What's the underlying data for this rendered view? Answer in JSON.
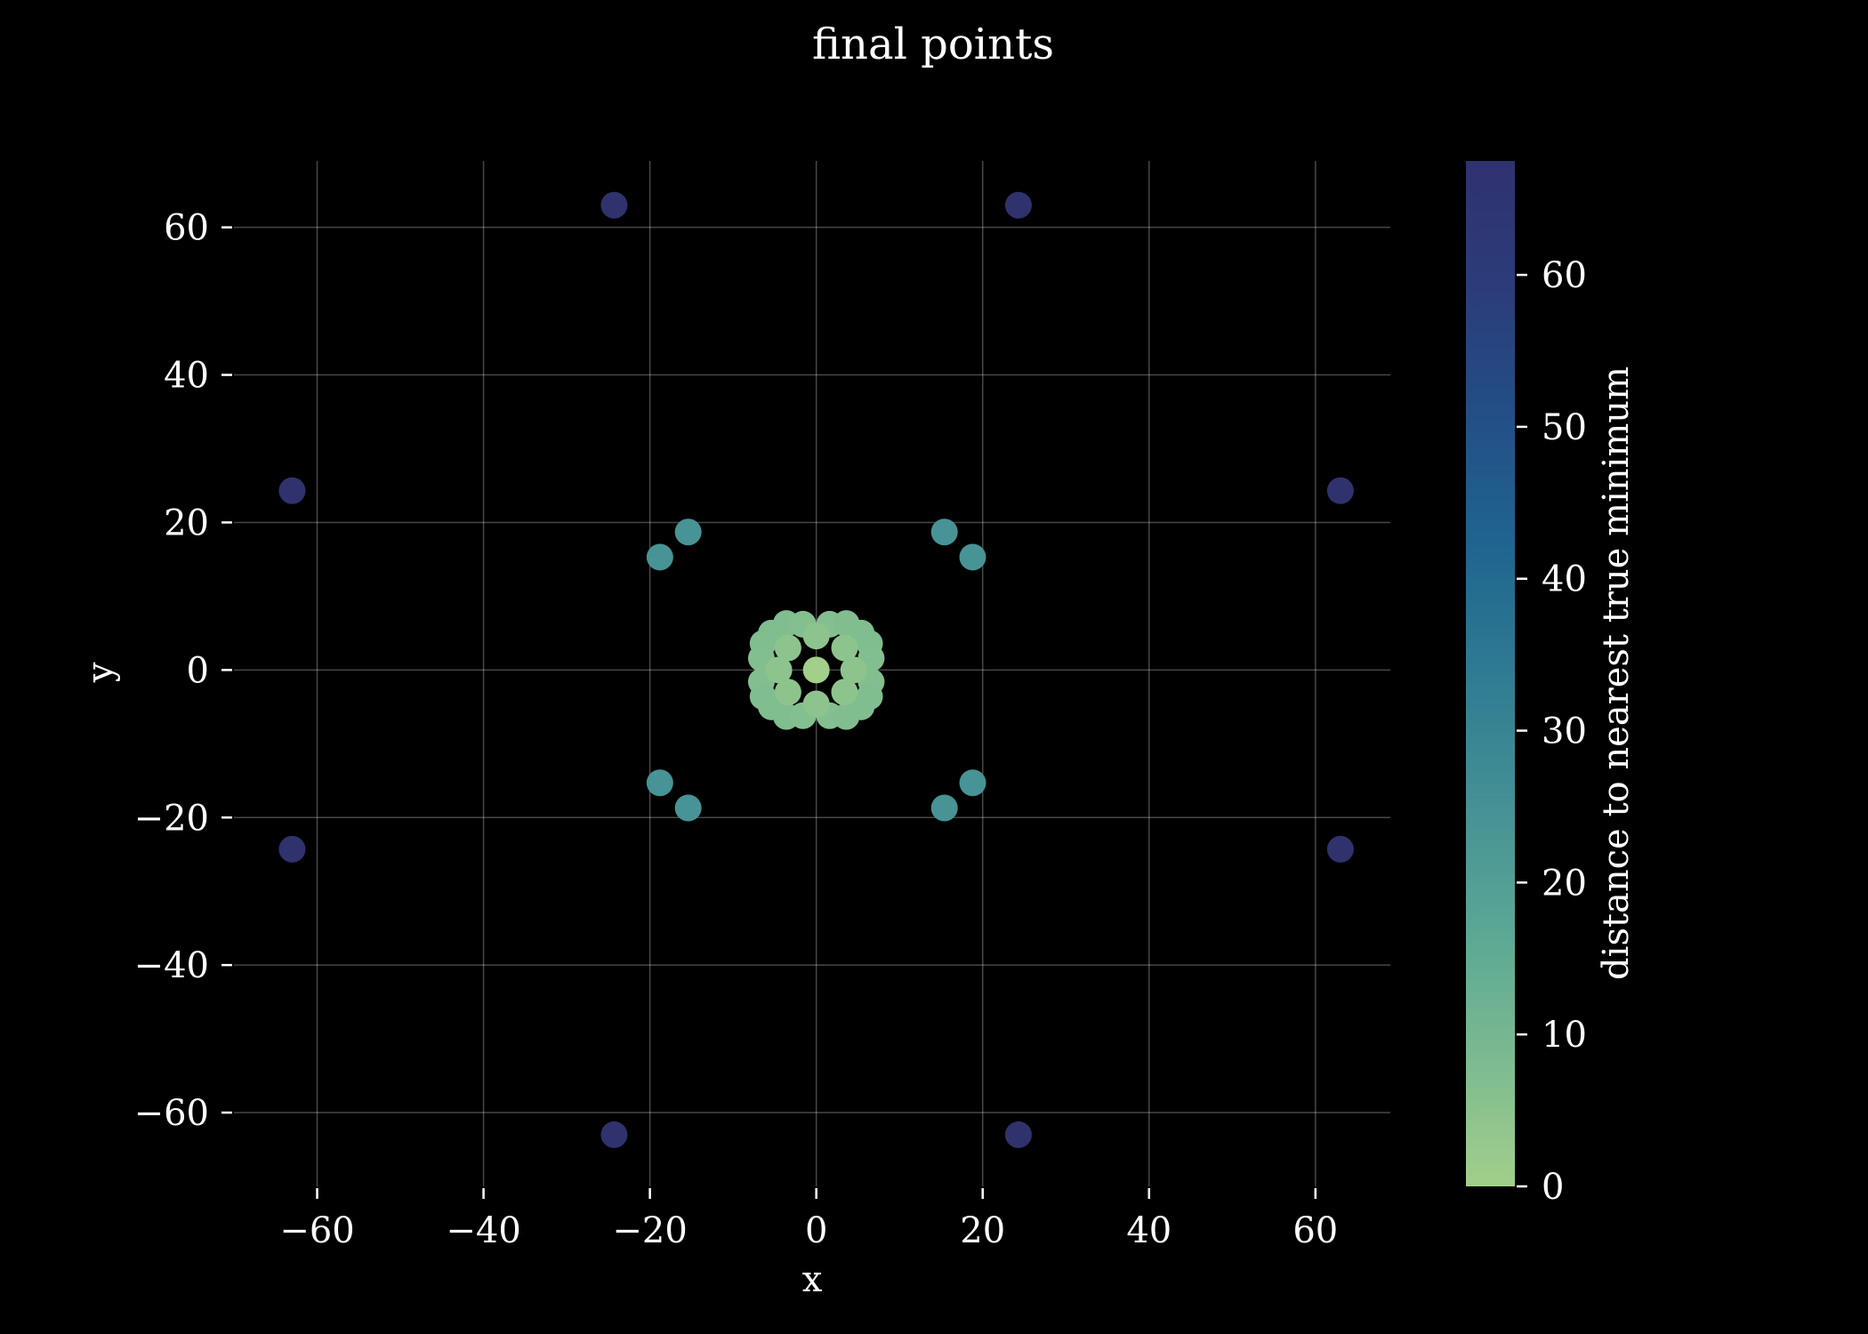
{
  "chart_data": {
    "type": "scatter",
    "title": "final points",
    "xlabel": "x",
    "ylabel": "y",
    "xlim": [
      -70,
      69
    ],
    "ylim": [
      -70,
      69
    ],
    "xticks": [
      -60,
      -40,
      -20,
      0,
      20,
      40,
      60
    ],
    "yticks": [
      -60,
      -40,
      -20,
      0,
      20,
      40,
      60
    ],
    "xtick_labels": [
      "−60",
      "−40",
      "−20",
      "0",
      "20",
      "40",
      "60"
    ],
    "ytick_labels": [
      "−60",
      "−40",
      "−20",
      "0",
      "20",
      "40",
      "60"
    ],
    "grid": true,
    "colorbar": {
      "label": "distance to nearest true minimum",
      "range": [
        0,
        67.5
      ],
      "ticks": [
        0,
        10,
        20,
        30,
        40,
        50,
        60
      ],
      "tick_labels": [
        "0",
        "10",
        "20",
        "30",
        "40",
        "50",
        "60"
      ],
      "colormap": [
        "#a2cf8a",
        "#7bba90",
        "#5aa795",
        "#449095",
        "#2f7b92",
        "#1f6590",
        "#234f86",
        "#2b3c7a",
        "#30326e"
      ]
    },
    "points": [
      {
        "x": -24.3,
        "y": 63.0,
        "c": 67.5
      },
      {
        "x": 24.3,
        "y": 63.0,
        "c": 67.5
      },
      {
        "x": -63.0,
        "y": 24.3,
        "c": 67.5
      },
      {
        "x": 63.0,
        "y": 24.3,
        "c": 67.5
      },
      {
        "x": -63.0,
        "y": -24.3,
        "c": 67.5
      },
      {
        "x": 63.0,
        "y": -24.3,
        "c": 67.5
      },
      {
        "x": -24.3,
        "y": -63.0,
        "c": 67.5
      },
      {
        "x": 24.3,
        "y": -63.0,
        "c": 67.5
      },
      {
        "x": -15.4,
        "y": 18.7,
        "c": 24.2
      },
      {
        "x": 15.4,
        "y": 18.7,
        "c": 24.2
      },
      {
        "x": -18.8,
        "y": 15.3,
        "c": 24.2
      },
      {
        "x": 18.8,
        "y": 15.3,
        "c": 24.2
      },
      {
        "x": -18.8,
        "y": -15.3,
        "c": 24.2
      },
      {
        "x": 18.8,
        "y": -15.3,
        "c": 24.2
      },
      {
        "x": -15.4,
        "y": -18.7,
        "c": 24.2
      },
      {
        "x": 15.4,
        "y": -18.7,
        "c": 24.2
      },
      {
        "x": -3.6,
        "y": 6.3,
        "c": 7.2
      },
      {
        "x": -1.6,
        "y": 6.2,
        "c": 6.4
      },
      {
        "x": 1.6,
        "y": 6.2,
        "c": 6.4
      },
      {
        "x": 3.6,
        "y": 6.3,
        "c": 7.2
      },
      {
        "x": -5.4,
        "y": 5.0,
        "c": 7.3
      },
      {
        "x": 5.4,
        "y": 5.0,
        "c": 7.3
      },
      {
        "x": -6.4,
        "y": 3.6,
        "c": 7.3
      },
      {
        "x": 6.4,
        "y": 3.6,
        "c": 7.3
      },
      {
        "x": -6.6,
        "y": 1.6,
        "c": 6.8
      },
      {
        "x": 6.6,
        "y": 1.6,
        "c": 6.8
      },
      {
        "x": -6.6,
        "y": -1.6,
        "c": 6.8
      },
      {
        "x": 6.6,
        "y": -1.6,
        "c": 6.8
      },
      {
        "x": -6.4,
        "y": -3.6,
        "c": 7.3
      },
      {
        "x": 6.4,
        "y": -3.6,
        "c": 7.3
      },
      {
        "x": -5.4,
        "y": -5.0,
        "c": 7.3
      },
      {
        "x": 5.4,
        "y": -5.0,
        "c": 7.3
      },
      {
        "x": -3.6,
        "y": -6.3,
        "c": 7.2
      },
      {
        "x": -1.6,
        "y": -6.2,
        "c": 6.4
      },
      {
        "x": 1.6,
        "y": -6.2,
        "c": 6.4
      },
      {
        "x": 3.6,
        "y": -6.3,
        "c": 7.2
      },
      {
        "x": -4.5,
        "y": 0.0,
        "c": 4.5
      },
      {
        "x": 4.5,
        "y": 0.0,
        "c": 4.5
      },
      {
        "x": -3.4,
        "y": 3.0,
        "c": 4.5
      },
      {
        "x": 3.4,
        "y": 3.0,
        "c": 4.5
      },
      {
        "x": -3.4,
        "y": -3.0,
        "c": 4.5
      },
      {
        "x": 3.4,
        "y": -3.0,
        "c": 4.5
      },
      {
        "x": 0.0,
        "y": 4.6,
        "c": 4.6
      },
      {
        "x": 0.0,
        "y": -4.6,
        "c": 4.6
      },
      {
        "x": 0.0,
        "y": 0.0,
        "c": 0.0
      }
    ]
  }
}
